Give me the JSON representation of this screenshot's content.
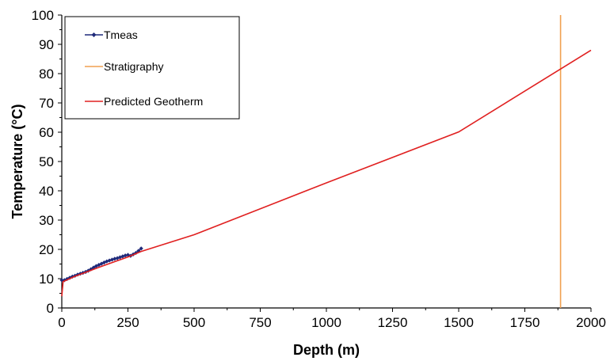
{
  "chart_data": {
    "type": "line",
    "title": "",
    "xlabel": "Depth (m)",
    "ylabel": "Temperature (°C)",
    "xlim": [
      0,
      2000
    ],
    "ylim": [
      0,
      100
    ],
    "xticks": [
      0,
      250,
      500,
      750,
      1000,
      1250,
      1500,
      1750,
      2000
    ],
    "yticks": [
      0,
      10,
      20,
      30,
      40,
      50,
      60,
      70,
      80,
      90,
      100
    ],
    "grid": false,
    "legend_position": "top-left",
    "series": [
      {
        "name": "Tmeas",
        "color": "#1f2a7a",
        "marker": "diamond",
        "x": [
          0,
          10,
          20,
          30,
          40,
          50,
          60,
          70,
          80,
          90,
          100,
          110,
          120,
          130,
          140,
          150,
          160,
          170,
          180,
          190,
          200,
          210,
          220,
          230,
          240,
          250,
          260,
          270,
          280,
          290,
          300
        ],
        "y": [
          9.5,
          9.5,
          9.9,
          10.3,
          10.7,
          11.0,
          11.4,
          11.7,
          12.0,
          12.3,
          12.7,
          13.2,
          13.8,
          14.3,
          14.7,
          15.1,
          15.5,
          15.9,
          16.2,
          16.5,
          16.8,
          17.0,
          17.3,
          17.6,
          17.9,
          18.1,
          17.8,
          18.3,
          18.8,
          19.5,
          20.3
        ]
      },
      {
        "name": "Stratigraphy",
        "color": "#f0a050",
        "x": [
          1885,
          1885
        ],
        "y": [
          0,
          100
        ]
      },
      {
        "name": "Predicted Geotherm",
        "color": "#e02020",
        "x": [
          0,
          5,
          10,
          50,
          100,
          150,
          200,
          250,
          300,
          500,
          1000,
          1500,
          2000
        ],
        "y": [
          4.0,
          9.0,
          9.2,
          10.8,
          12.5,
          14.2,
          15.8,
          17.4,
          19.3,
          25.0,
          42.7,
          60.1,
          88.0
        ]
      }
    ]
  }
}
